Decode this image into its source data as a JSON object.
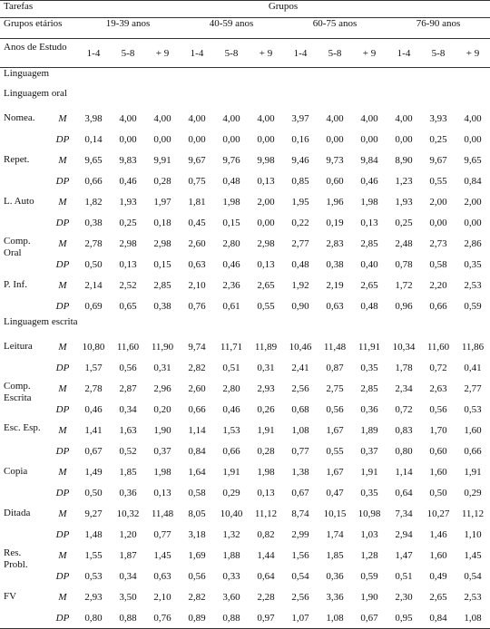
{
  "header": {
    "tasks_label": "Tarefas",
    "groups_label": "Grupos",
    "age_groups_label": "Grupos etários",
    "age_groups": [
      "19-39 anos",
      "40-59 anos",
      "60-75 anos",
      "76-90 anos"
    ],
    "schooling_label": "Anos de Estudo",
    "schooling_levels": [
      "1-4",
      "5-8",
      "+ 9",
      "1-4",
      "5-8",
      "+ 9",
      "1-4",
      "5-8",
      "+ 9",
      "1-4",
      "5-8",
      "+ 9"
    ]
  },
  "sections": [
    {
      "label": "Linguagem"
    },
    {
      "label": "Linguagem oral"
    },
    {
      "label": "Linguagem escrita"
    }
  ],
  "oral_tasks": [
    {
      "label": "Nomea.",
      "m": [
        "3,98",
        "4,00",
        "4,00",
        "4,00",
        "4,00",
        "4,00",
        "3,97",
        "4,00",
        "4,00",
        "4,00",
        "3,93",
        "4,00"
      ],
      "dp": [
        "0,14",
        "0,00",
        "0,00",
        "0,00",
        "0,00",
        "0,00",
        "0,16",
        "0,00",
        "0,00",
        "0,00",
        "0,25",
        "0,00"
      ]
    },
    {
      "label": "Repet.",
      "m": [
        "9,65",
        "9,83",
        "9,91",
        "9,67",
        "9,76",
        "9,98",
        "9,46",
        "9,73",
        "9,84",
        "8,90",
        "9,67",
        "9,65"
      ],
      "dp": [
        "0,66",
        "0,46",
        "0,28",
        "0,75",
        "0,48",
        "0,13",
        "0,85",
        "0,60",
        "0,46",
        "1,23",
        "0,55",
        "0,84"
      ]
    },
    {
      "label": "L. Auto",
      "m": [
        "1,82",
        "1,93",
        "1,97",
        "1,81",
        "1,98",
        "2,00",
        "1,95",
        "1,96",
        "1,98",
        "1,93",
        "2,00",
        "2,00"
      ],
      "dp": [
        "0,38",
        "0,25",
        "0,18",
        "0,45",
        "0,15",
        "0,00",
        "0,22",
        "0,19",
        "0,13",
        "0,25",
        "0,00",
        "0,00"
      ]
    },
    {
      "label": "Comp. Oral",
      "m": [
        "2,78",
        "2,98",
        "2,98",
        "2,60",
        "2,80",
        "2,98",
        "2,77",
        "2,83",
        "2,85",
        "2,48",
        "2,73",
        "2,86"
      ],
      "dp": [
        "0,50",
        "0,13",
        "0,15",
        "0,63",
        "0,46",
        "0,13",
        "0,48",
        "0,38",
        "0,40",
        "0,78",
        "0,58",
        "0,35"
      ]
    },
    {
      "label": "P. Inf.",
      "m": [
        "2,14",
        "2,52",
        "2,85",
        "2,10",
        "2,36",
        "2,65",
        "1,92",
        "2,19",
        "2,65",
        "1,72",
        "2,20",
        "2,53"
      ],
      "dp": [
        "0,69",
        "0,65",
        "0,38",
        "0,76",
        "0,61",
        "0,55",
        "0,90",
        "0,63",
        "0,48",
        "0,96",
        "0,66",
        "0,59"
      ]
    }
  ],
  "written_tasks": [
    {
      "label": "Leitura",
      "m": [
        "10,80",
        "11,60",
        "11,90",
        "9,74",
        "11,71",
        "11,89",
        "10,46",
        "11,48",
        "11,91",
        "10,34",
        "11,60",
        "11,86"
      ],
      "dp": [
        "1,57",
        "0,56",
        "0,31",
        "2,82",
        "0,51",
        "0,31",
        "2,41",
        "0,87",
        "0,35",
        "1,78",
        "0,72",
        "0,41"
      ]
    },
    {
      "label": "Comp. Escrita",
      "m": [
        "2,78",
        "2,87",
        "2,96",
        "2,60",
        "2,80",
        "2,93",
        "2,56",
        "2,75",
        "2,85",
        "2,34",
        "2,63",
        "2,77"
      ],
      "dp": [
        "0,46",
        "0,34",
        "0,20",
        "0,66",
        "0,46",
        "0,26",
        "0,68",
        "0,56",
        "0,36",
        "0,72",
        "0,56",
        "0,53"
      ]
    },
    {
      "label": "Esc. Esp.",
      "m": [
        "1,41",
        "1,63",
        "1,90",
        "1,14",
        "1,53",
        "1,91",
        "1,08",
        "1,67",
        "1,89",
        "0,83",
        "1,70",
        "1,60"
      ],
      "dp": [
        "0,67",
        "0,52",
        "0,37",
        "0,84",
        "0,66",
        "0,28",
        "0,77",
        "0,55",
        "0,37",
        "0,80",
        "0,60",
        "0,66"
      ]
    },
    {
      "label": "Copia",
      "m": [
        "1,49",
        "1,85",
        "1,98",
        "1,64",
        "1,91",
        "1,98",
        "1,38",
        "1,67",
        "1,91",
        "1,14",
        "1,60",
        "1,91"
      ],
      "dp": [
        "0,50",
        "0,36",
        "0,13",
        "0,58",
        "0,29",
        "0,13",
        "0,67",
        "0,47",
        "0,35",
        "0,64",
        "0,50",
        "0,29"
      ]
    },
    {
      "label": "Ditada",
      "m": [
        "9,27",
        "10,32",
        "11,48",
        "8,05",
        "10,40",
        "11,12",
        "8,74",
        "10,15",
        "10,98",
        "7,34",
        "10,27",
        "11,12"
      ],
      "dp": [
        "1,48",
        "1,20",
        "0,77",
        "3,18",
        "1,32",
        "0,82",
        "2,99",
        "1,74",
        "1,03",
        "2,94",
        "1,46",
        "1,10"
      ]
    },
    {
      "label": "Res. Probl.",
      "m": [
        "1,55",
        "1,87",
        "1,45",
        "1,69",
        "1,88",
        "1,44",
        "1,56",
        "1,85",
        "1,28",
        "1,47",
        "1,60",
        "1,45"
      ],
      "dp": [
        "0,53",
        "0,34",
        "0,63",
        "0,56",
        "0,33",
        "0,64",
        "0,54",
        "0,36",
        "0,59",
        "0,51",
        "0,49",
        "0,54"
      ]
    },
    {
      "label": "FV",
      "m": [
        "2,93",
        "3,50",
        "2,10",
        "2,82",
        "3,60",
        "2,28",
        "2,56",
        "3,36",
        "1,90",
        "2,30",
        "2,65",
        "2,53"
      ],
      "dp": [
        "0,80",
        "0,88",
        "0,76",
        "0,89",
        "0,88",
        "0,97",
        "1,07",
        "1,08",
        "0,67",
        "0,95",
        "0,84",
        "1,08"
      ]
    }
  ],
  "stat_labels": {
    "mean": "M",
    "sd": "DP"
  }
}
